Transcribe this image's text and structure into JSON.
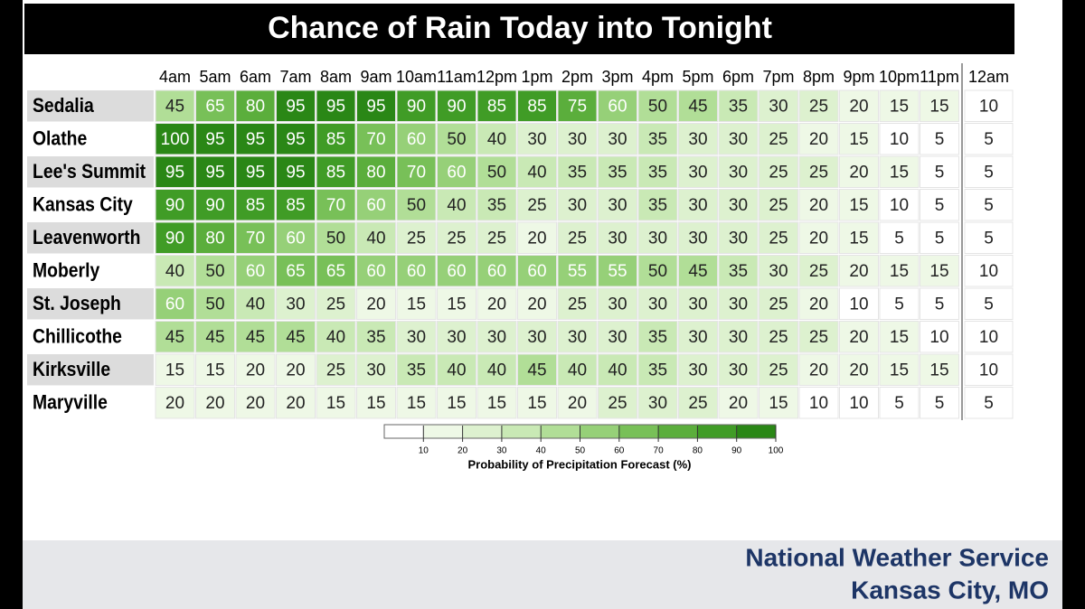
{
  "chart_data": {
    "type": "heatmap",
    "title": "Chance of Rain Today into Tonight",
    "x_categories": [
      "4am",
      "5am",
      "6am",
      "7am",
      "8am",
      "9am",
      "10am",
      "11am",
      "12pm",
      "1pm",
      "2pm",
      "3pm",
      "4pm",
      "5pm",
      "6pm",
      "7pm",
      "8pm",
      "9pm",
      "10pm",
      "11pm",
      "12am"
    ],
    "y_categories": [
      "Sedalia",
      "Olathe",
      "Lee's Summit",
      "Kansas City",
      "Leavenworth",
      "Moberly",
      "St. Joseph",
      "Chillicothe",
      "Kirksville",
      "Maryville"
    ],
    "values": [
      [
        45,
        65,
        80,
        95,
        95,
        95,
        90,
        90,
        85,
        85,
        75,
        60,
        50,
        45,
        35,
        30,
        25,
        20,
        15,
        15,
        10
      ],
      [
        100,
        95,
        95,
        95,
        85,
        70,
        60,
        50,
        40,
        30,
        30,
        30,
        35,
        30,
        30,
        25,
        20,
        15,
        10,
        5,
        5
      ],
      [
        95,
        95,
        95,
        95,
        85,
        80,
        70,
        60,
        50,
        40,
        35,
        35,
        35,
        30,
        30,
        25,
        25,
        20,
        15,
        5,
        5
      ],
      [
        90,
        90,
        85,
        85,
        70,
        60,
        50,
        40,
        35,
        25,
        30,
        30,
        35,
        30,
        30,
        25,
        20,
        15,
        10,
        5,
        5
      ],
      [
        90,
        80,
        70,
        60,
        50,
        40,
        25,
        25,
        25,
        20,
        25,
        30,
        30,
        30,
        30,
        25,
        20,
        15,
        5,
        5,
        5
      ],
      [
        40,
        50,
        60,
        65,
        65,
        60,
        60,
        60,
        60,
        60,
        55,
        55,
        50,
        45,
        35,
        30,
        25,
        20,
        15,
        15,
        10
      ],
      [
        60,
        50,
        40,
        30,
        25,
        20,
        15,
        15,
        20,
        20,
        25,
        30,
        30,
        30,
        30,
        25,
        20,
        10,
        5,
        5,
        5
      ],
      [
        45,
        45,
        45,
        45,
        40,
        35,
        30,
        30,
        30,
        30,
        30,
        30,
        35,
        30,
        30,
        25,
        25,
        20,
        15,
        10,
        10
      ],
      [
        15,
        15,
        20,
        20,
        25,
        30,
        35,
        40,
        40,
        45,
        40,
        40,
        35,
        30,
        30,
        25,
        20,
        20,
        15,
        15,
        10
      ],
      [
        20,
        20,
        20,
        20,
        15,
        15,
        15,
        15,
        15,
        15,
        20,
        25,
        30,
        25,
        20,
        15,
        10,
        10,
        5,
        5,
        5
      ]
    ],
    "colors": [
      "#ffffff",
      "#eef8e6",
      "#ddf1cf",
      "#c9e9b5",
      "#b1de97",
      "#96d078",
      "#78c058",
      "#5bae3c",
      "#409c26",
      "#2a8716"
    ],
    "clim": [
      0,
      100
    ],
    "cticks": [
      10,
      20,
      30,
      40,
      50,
      60,
      70,
      80,
      90,
      100
    ],
    "colorbar_label": "Probability of Precipitation Forecast (%)"
  },
  "footer": {
    "line1": "National Weather Service",
    "line2": "Kansas City, MO"
  }
}
